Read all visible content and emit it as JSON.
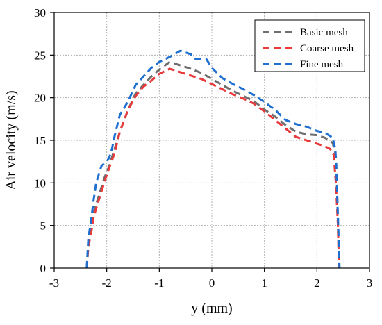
{
  "chart_data": {
    "type": "line",
    "xlabel": "y (mm)",
    "ylabel": "Air velocity (m/s)",
    "xlim": [
      -3,
      3
    ],
    "ylim": [
      0,
      30
    ],
    "xticks": [
      "-3",
      "-2",
      "-1",
      "0",
      "1",
      "2",
      "3"
    ],
    "yticks": [
      "0",
      "5",
      "10",
      "15",
      "20",
      "25",
      "30"
    ],
    "grid": true,
    "legend_position": "top-right",
    "series": [
      {
        "name": "Basic mesh",
        "color": "#6e6e6e",
        "points": [
          [
            -2.38,
            0
          ],
          [
            -2.35,
            3
          ],
          [
            -2.3,
            4.5
          ],
          [
            -2.25,
            6.5
          ],
          [
            -2.15,
            8.5
          ],
          [
            -2.05,
            10.5
          ],
          [
            -1.95,
            12
          ],
          [
            -1.85,
            14
          ],
          [
            -1.75,
            16
          ],
          [
            -1.6,
            18.5
          ],
          [
            -1.45,
            20.5
          ],
          [
            -1.3,
            21.5
          ],
          [
            -1.15,
            22.5
          ],
          [
            -1.0,
            23.3
          ],
          [
            -0.8,
            24.2
          ],
          [
            -0.6,
            23.8
          ],
          [
            -0.4,
            23.4
          ],
          [
            -0.2,
            22.9
          ],
          [
            0.0,
            22.2
          ],
          [
            0.2,
            21.5
          ],
          [
            0.4,
            20.8
          ],
          [
            0.6,
            20.2
          ],
          [
            0.8,
            19.6
          ],
          [
            1.0,
            18.6
          ],
          [
            1.2,
            17.8
          ],
          [
            1.4,
            16.8
          ],
          [
            1.6,
            16.0
          ],
          [
            1.8,
            15.7
          ],
          [
            2.0,
            15.6
          ],
          [
            2.15,
            15.3
          ],
          [
            2.3,
            14.7
          ],
          [
            2.35,
            13.5
          ],
          [
            2.38,
            10
          ],
          [
            2.4,
            5
          ],
          [
            2.42,
            0
          ]
        ]
      },
      {
        "name": "Coarse mesh",
        "color": "#e8393b",
        "points": [
          [
            -2.38,
            0
          ],
          [
            -2.35,
            2.5
          ],
          [
            -2.3,
            4
          ],
          [
            -2.25,
            6
          ],
          [
            -2.15,
            8
          ],
          [
            -2.05,
            10
          ],
          [
            -1.95,
            11.8
          ],
          [
            -1.85,
            13.5
          ],
          [
            -1.75,
            16
          ],
          [
            -1.6,
            18.5
          ],
          [
            -1.45,
            20.2
          ],
          [
            -1.3,
            21.3
          ],
          [
            -1.15,
            22.0
          ],
          [
            -1.0,
            22.8
          ],
          [
            -0.8,
            23.4
          ],
          [
            -0.6,
            23.0
          ],
          [
            -0.4,
            22.6
          ],
          [
            -0.2,
            22.2
          ],
          [
            0.0,
            21.6
          ],
          [
            0.2,
            21.0
          ],
          [
            0.4,
            20.4
          ],
          [
            0.6,
            19.9
          ],
          [
            0.8,
            19.3
          ],
          [
            1.0,
            18.4
          ],
          [
            1.2,
            17.4
          ],
          [
            1.4,
            16.4
          ],
          [
            1.6,
            15.4
          ],
          [
            1.8,
            15.0
          ],
          [
            2.0,
            14.6
          ],
          [
            2.15,
            14.3
          ],
          [
            2.25,
            14.0
          ],
          [
            2.32,
            13.3
          ],
          [
            2.36,
            10
          ],
          [
            2.4,
            5
          ],
          [
            2.42,
            0
          ]
        ]
      },
      {
        "name": "Fine mesh",
        "color": "#1f6fd1",
        "points": [
          [
            -2.38,
            0
          ],
          [
            -2.35,
            3.5
          ],
          [
            -2.3,
            5.5
          ],
          [
            -2.25,
            8
          ],
          [
            -2.2,
            10
          ],
          [
            -2.15,
            11
          ],
          [
            -2.1,
            12
          ],
          [
            -2.0,
            12.5
          ],
          [
            -1.95,
            13
          ],
          [
            -1.9,
            14
          ],
          [
            -1.85,
            15.5
          ],
          [
            -1.75,
            18
          ],
          [
            -1.6,
            19.5
          ],
          [
            -1.45,
            21.5
          ],
          [
            -1.3,
            22.5
          ],
          [
            -1.15,
            23.5
          ],
          [
            -1.0,
            24.2
          ],
          [
            -0.8,
            24.8
          ],
          [
            -0.6,
            25.5
          ],
          [
            -0.4,
            25.1
          ],
          [
            -0.3,
            24.5
          ],
          [
            -0.1,
            24.5
          ],
          [
            0.0,
            23.5
          ],
          [
            0.2,
            22.3
          ],
          [
            0.4,
            21.6
          ],
          [
            0.6,
            21.0
          ],
          [
            0.8,
            20.3
          ],
          [
            1.0,
            19.5
          ],
          [
            1.2,
            18.6
          ],
          [
            1.4,
            17.4
          ],
          [
            1.6,
            16.9
          ],
          [
            1.8,
            16.6
          ],
          [
            2.0,
            16.1
          ],
          [
            2.15,
            15.9
          ],
          [
            2.3,
            15.3
          ],
          [
            2.35,
            14
          ],
          [
            2.37,
            12
          ],
          [
            2.39,
            8
          ],
          [
            2.41,
            4
          ],
          [
            2.43,
            0
          ]
        ]
      }
    ]
  }
}
